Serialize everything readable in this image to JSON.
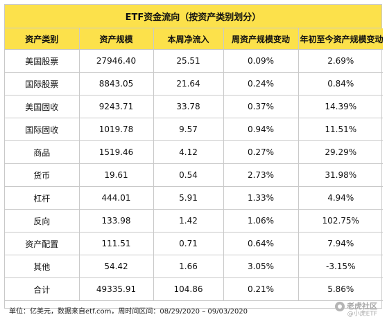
{
  "title": "ETF资金流向（按资产类别划分）",
  "headers": [
    "资产类别",
    "资产规模",
    "本周净流入",
    "周资产规模变动",
    "年初至今资产规模变动"
  ],
  "rows": [
    [
      "美国股票",
      "27946.40",
      "25.51",
      "0.09%",
      "2.69%"
    ],
    [
      "国际股票",
      "8843.05",
      "21.64",
      "0.24%",
      "0.84%"
    ],
    [
      "美国固收",
      "9243.71",
      "33.78",
      "0.37%",
      "14.39%"
    ],
    [
      "国际固收",
      "1019.78",
      "9.57",
      "0.94%",
      "11.51%"
    ],
    [
      "商品",
      "1519.46",
      "4.12",
      "0.27%",
      "29.29%"
    ],
    [
      "货币",
      "19.61",
      "0.54",
      "2.73%",
      "31.98%"
    ],
    [
      "杠杆",
      "444.01",
      "5.91",
      "1.33%",
      "4.94%"
    ],
    [
      "反向",
      "133.98",
      "1.42",
      "1.06%",
      "102.75%"
    ],
    [
      "资产配置",
      "111.51",
      "0.71",
      "0.64%",
      "7.94%"
    ],
    [
      "其他",
      "54.42",
      "1.66",
      "3.05%",
      "-3.15%"
    ]
  ],
  "total": [
    "合计",
    "49335.91",
    "104.86",
    "0.21%",
    "5.86%"
  ],
  "footer": {
    "note": "单位：亿美元，数据来自etf.com，周时间区间：08/29/2020 – 09/03/2020",
    "watermark_top": "老虎社区",
    "watermark_bottom": "@小虎ETF"
  },
  "colors": {
    "header_bg": "#fce14b",
    "border": "#c9c9c9"
  },
  "icons": {
    "watermark_logo": "tiger-logo-icon"
  }
}
